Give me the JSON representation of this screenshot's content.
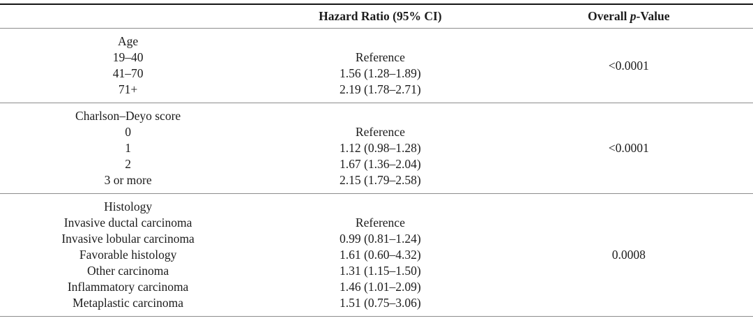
{
  "colors": {
    "background": "#ffffff",
    "text": "#1c1c1c",
    "rule_heavy": "#151515",
    "rule_light": "#8c8c8c"
  },
  "header": {
    "variable": "",
    "hazard_ratio": "Hazard Ratio (95% CI)",
    "pvalue_prefix": "Overall ",
    "pvalue_italic": "p",
    "pvalue_suffix": "-Value"
  },
  "sections": [
    {
      "label": "Age",
      "rows": [
        {
          "category": "19–40",
          "hr": "Reference"
        },
        {
          "category": "41–70",
          "hr": "1.56 (1.28–1.89)"
        },
        {
          "category": "71+",
          "hr": "2.19 (1.78–2.71)"
        }
      ],
      "p_value": "<0.0001"
    },
    {
      "label": "Charlson–Deyo score",
      "rows": [
        {
          "category": "0",
          "hr": "Reference"
        },
        {
          "category": "1",
          "hr": "1.12 (0.98–1.28)"
        },
        {
          "category": "2",
          "hr": "1.67 (1.36–2.04)"
        },
        {
          "category": "3 or more",
          "hr": "2.15 (1.79–2.58)"
        }
      ],
      "p_value": "<0.0001"
    },
    {
      "label": "Histology",
      "rows": [
        {
          "category": "Invasive ductal carcinoma",
          "hr": "Reference"
        },
        {
          "category": "Invasive lobular carcinoma",
          "hr": "0.99 (0.81–1.24)"
        },
        {
          "category": "Favorable histology",
          "hr": "1.61 (0.60–4.32)"
        },
        {
          "category": "Other carcinoma",
          "hr": "1.31 (1.15–1.50)"
        },
        {
          "category": "Inflammatory carcinoma",
          "hr": "1.46 (1.01–2.09)"
        },
        {
          "category": "Metaplastic carcinoma",
          "hr": "1.51 (0.75–3.06)"
        }
      ],
      "p_value": "0.0008"
    }
  ]
}
